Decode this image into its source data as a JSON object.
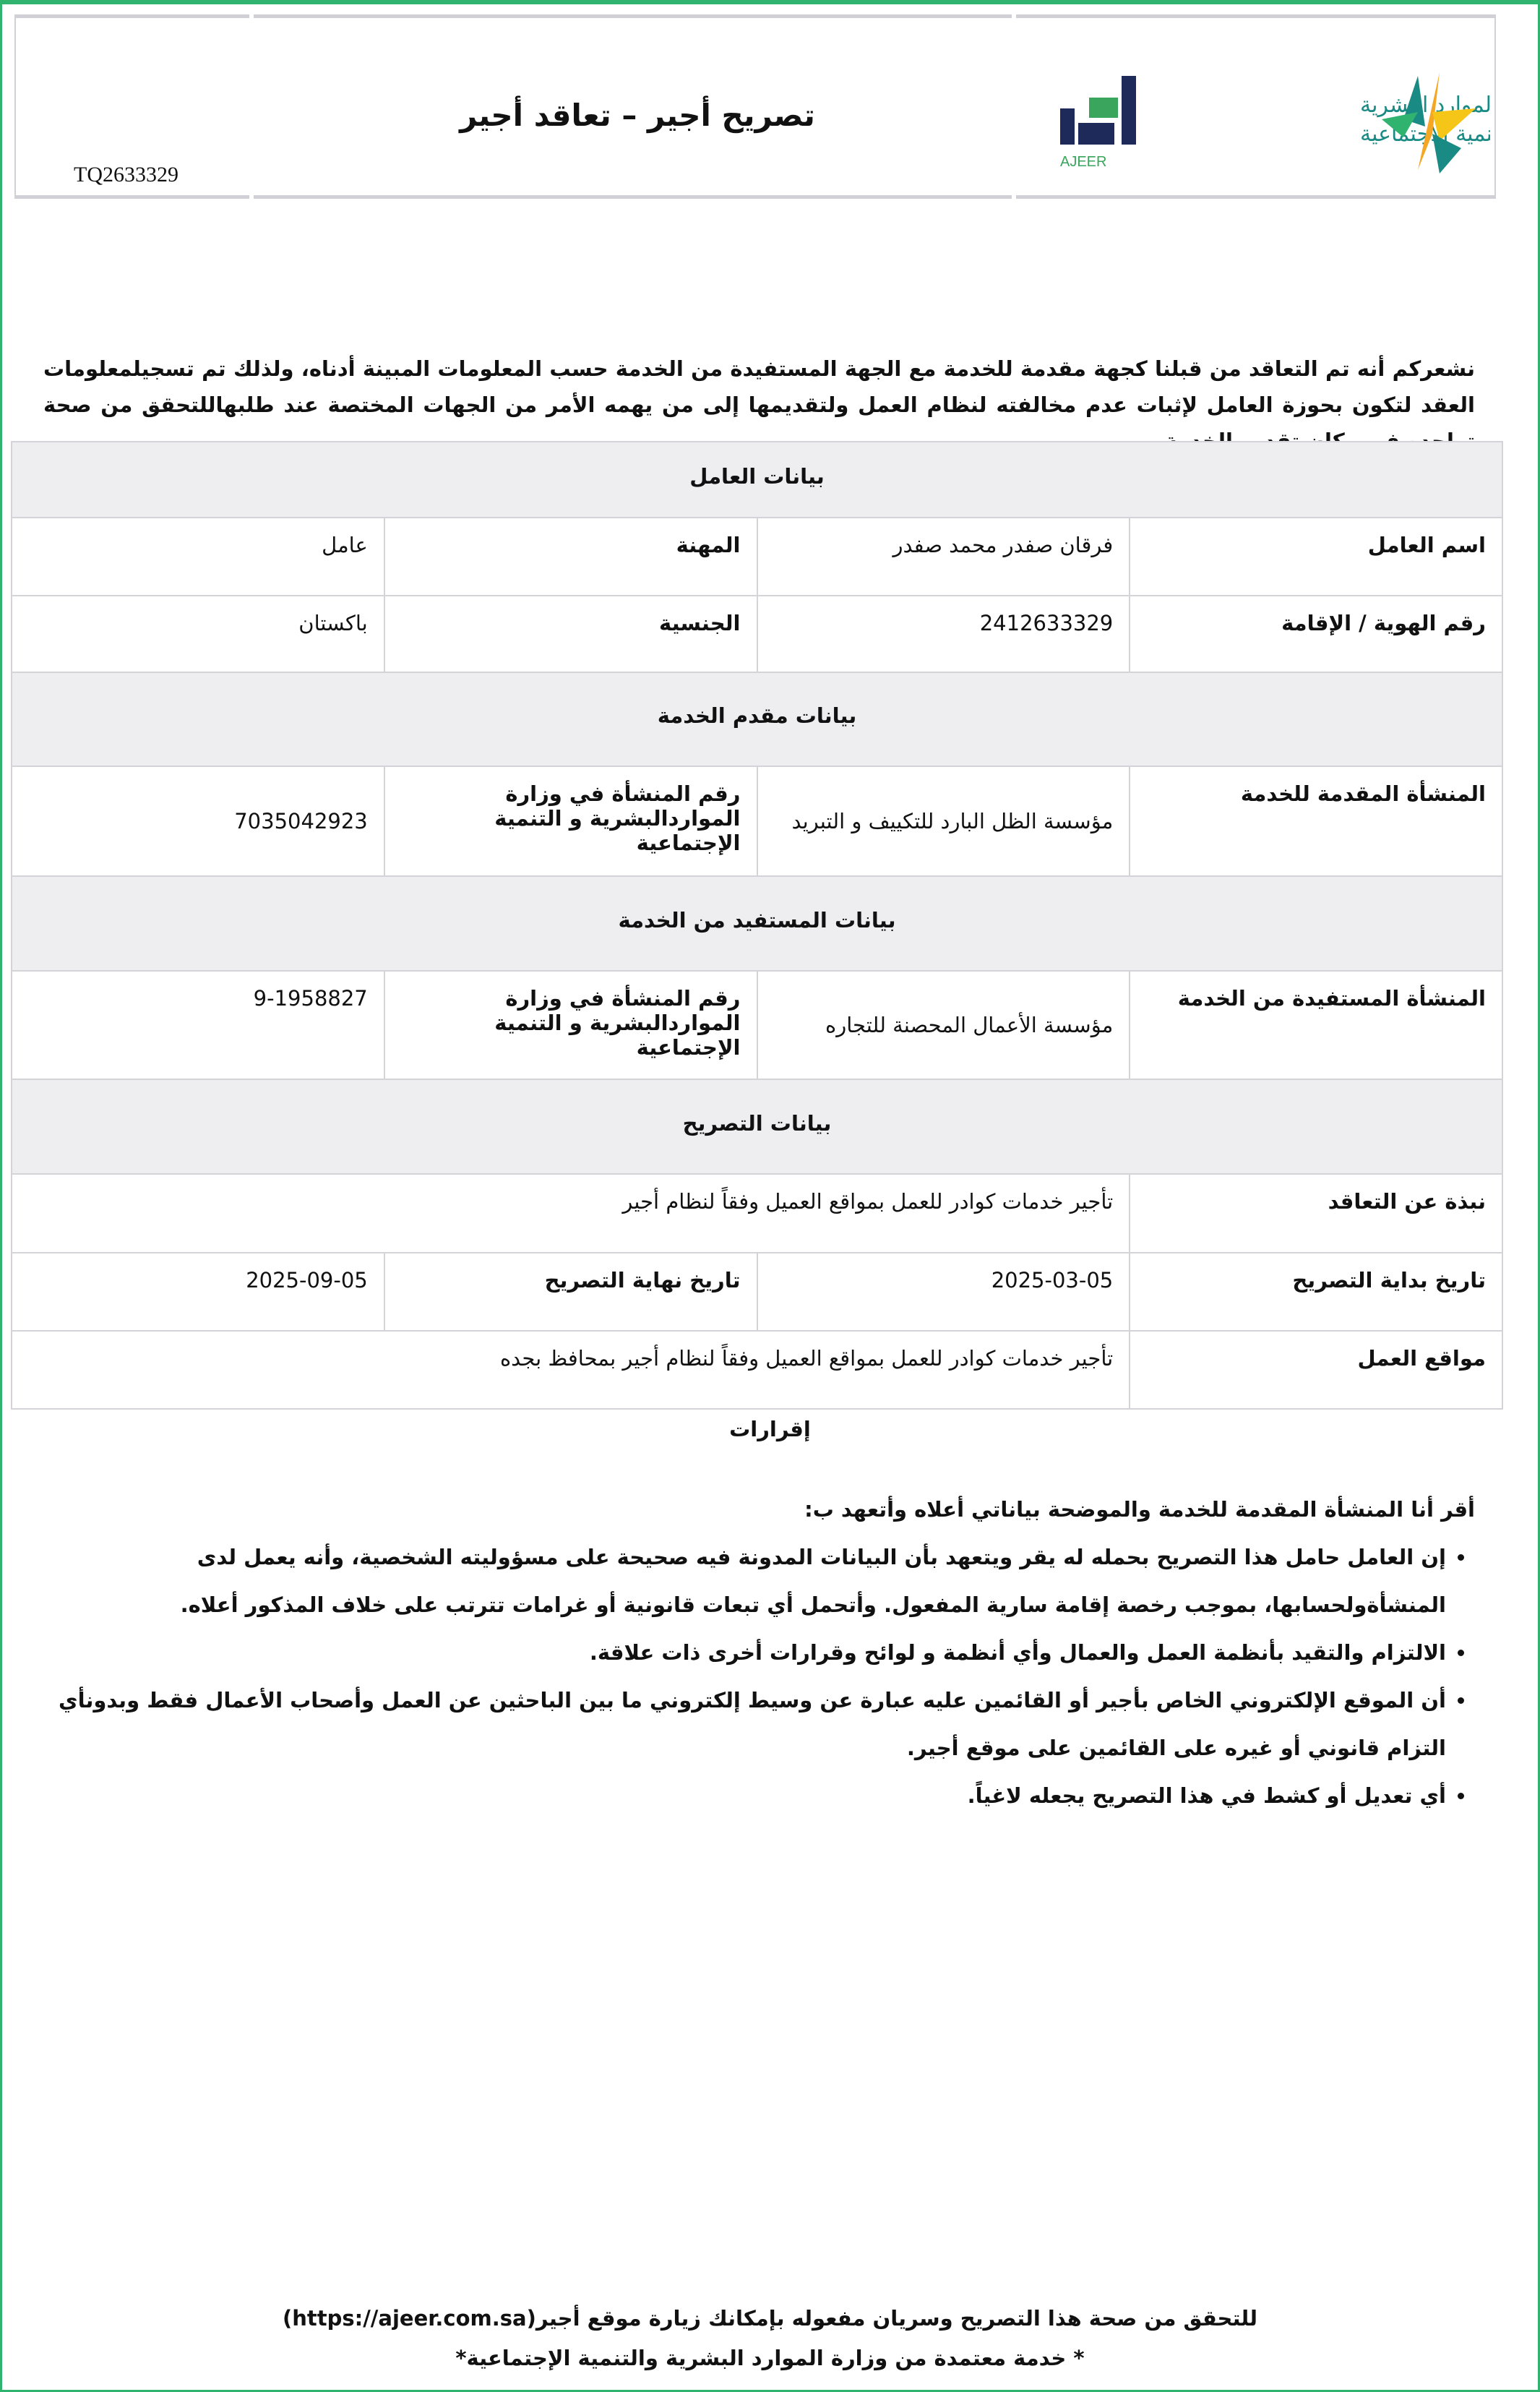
{
  "header": {
    "title": "تصريح أجير –  تعاقد أجير",
    "reference": "TQ2633329",
    "ajeer_logo_text": "أجير",
    "ajeer_logo_latin": "AJEER",
    "ministry_logo_text": "الموارد البشرية والتنمية الاجتماعية",
    "brand_colors": {
      "green": "#2fb36f",
      "navy": "#1e2a5a",
      "teal": "#1a8a84",
      "orange": "#f5a623"
    }
  },
  "intro": "نشعركم أنه تم التعاقد من قبلنا كجهة مقدمة للخدمة مع الجهة المستفيدة من الخدمة حسب المعلومات المبينة أدناه، ولذلك تم تسجيلمعلومات العقد لتكون بحوزة العامل لإثبات عدم مخالفته لنظام العمل ولتقديمها إلى من يهمه الأمر من الجهات المختصة عند طلبهاللتحقق من صحة تواجده في مكان تقديم الخدمة",
  "worker": {
    "section": "بيانات العامل",
    "name_label": "اسم العامل",
    "name": "فرقان صفدر محمد صفدر",
    "profession_label": "المهنة",
    "profession": "عامل",
    "id_label": "رقم الهوية / الإقامة",
    "id": "2412633329",
    "nationality_label": "الجنسية",
    "nationality": "باكستان"
  },
  "provider": {
    "section": "بيانات مقدم الخدمة",
    "org_label": "المنشأة المقدمة للخدمة",
    "org": "مؤسسة الظل البارد للتكييف و التبريد",
    "num_label": "رقم المنشأة في وزارة المواردالبشرية و التنمية الإجتماعية",
    "num": "7035042923"
  },
  "beneficiary": {
    "section": "بيانات المستفيد من الخدمة",
    "org_label": "المنشأة المستفيدة من الخدمة",
    "org": "مؤسسة الأعمال المحصنة للتجاره",
    "num_label": "رقم المنشأة في وزارة المواردالبشرية و التنمية الإجتماعية",
    "num": "9-1958827"
  },
  "permit": {
    "section": "بيانات التصريح",
    "summary_label": "نبذة عن التعاقد",
    "summary": "تأجير خدمات كوادر للعمل بمواقع العميل وفقاً لنظام أجير",
    "start_label": "تاريخ بداية التصريح",
    "start": "2025-03-05",
    "end_label": "تاريخ نهاية التصريح",
    "end": "2025-09-05",
    "sites_label": "مواقع العمل",
    "sites": "تأجير خدمات كوادر للعمل بمواقع العميل وفقاً لنظام أجير بمحافظ بجده"
  },
  "declarations": {
    "title": "إقرارات",
    "lead": "أقر أنا المنشأة المقدمة للخدمة والموضحة بياناتي أعلاه وأتعهد ب:",
    "items": [
      "إن العامل حامل هذا التصريح بحمله له يقر ويتعهد بأن البيانات المدونة فيه صحيحة على مسؤوليته الشخصية، وأنه يعمل لدى المنشأةولحسابها، بموجب رخصة إقامة سارية المفعول. وأتحمل أي تبعات قانونية أو غرامات تترتب على خلاف المذكور أعلاه.",
      "الالتزام والتقيد بأنظمة العمل والعمال وأي أنظمة و لوائح وقرارات أخرى ذات علاقة.",
      "أن الموقع الإلكتروني الخاص بأجير أو القائمين عليه عبارة عن وسيط إلكتروني ما بين الباحثين عن العمل وأصحاب الأعمال فقط وبدونأي التزام قانوني أو غيره على القائمين على موقع أجير.",
      "أي تعديل أو كشط في هذا التصريح يجعله لاغياً."
    ]
  },
  "footer": {
    "verify": "للتحقق من صحة هذا التصريح وسريان مفعوله بإمكانك زيارة موقع أجير(https://ajeer.com.sa)",
    "note": "* خدمة معتمدة من وزارة الموارد البشرية والتنمية الإجتماعية*"
  }
}
